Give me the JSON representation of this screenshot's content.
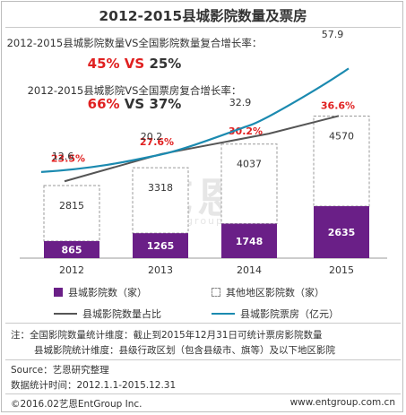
{
  "title": "2012-2015县城影院数量及票房",
  "growth": [
    {
      "label": "2012-2015县城影院数量VS全国影院数量复合增长率：",
      "value_a": "45%",
      "vs": "VS",
      "value_b": "25%"
    },
    {
      "label": "2012-2015县城影院VS全国票房复合增长率：",
      "value_a": "66%",
      "vs": "VS",
      "value_b": "37%"
    }
  ],
  "watermark": {
    "main": "艺恩",
    "sub": "entgroup"
  },
  "chart_data": {
    "type": "bar",
    "categories": [
      "2012",
      "2013",
      "2014",
      "2015"
    ],
    "series": [
      {
        "name": "县城影院数（家）",
        "values": [
          865,
          1265,
          1748,
          2635
        ]
      },
      {
        "name": "其他地区影院数（家）",
        "values": [
          2815,
          3318,
          4037,
          4570
        ]
      },
      {
        "name": "县城影院数量占比",
        "values": [
          23.5,
          27.6,
          30.2,
          36.6
        ],
        "labels": [
          "23.5%",
          "27.6%",
          "30.2%",
          "36.6%"
        ]
      },
      {
        "name": "县城影院票房（亿元）",
        "values": [
          12.6,
          20.2,
          32.9,
          57.9
        ]
      }
    ],
    "colors": {
      "county_bar": "#6a1f87",
      "other_bar": "#ffffff",
      "share_line": "#555555",
      "boxoffice_line": "#1b8ab0",
      "share_label": "#e02020"
    }
  },
  "legend": {
    "county_cinemas": "县城影院数（家）",
    "other_cinemas": "其他地区影院数（家）",
    "share": "县城影院数量占比",
    "box_office": "县城影院票房（亿元）"
  },
  "notes": {
    "line1": "注：全国影院数量统计维度：截止到2015年12月31日可统计票房影院数量",
    "line2": "县城影院统计维度：县级行政区划（包含县级市、旗等）及以下地区影院"
  },
  "footer": {
    "source": "Source：艺恩研究整理",
    "period": "数据统计时间：2012.1.1-2015.12.31",
    "copyright": "©2016.02艺恩EntGroup Inc.",
    "website": "www.entgroup.com.cn"
  }
}
